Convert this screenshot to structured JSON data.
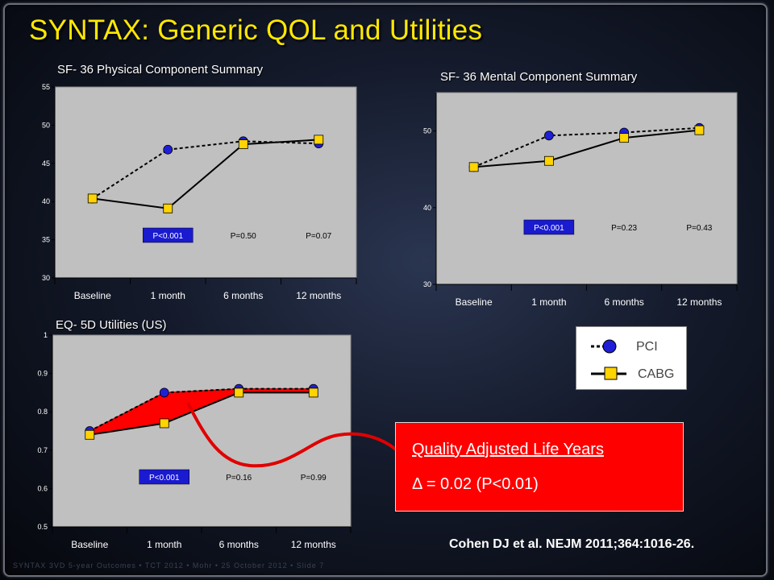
{
  "title": "SYNTAX: Generic QOL and Utilities",
  "colors": {
    "title": "#ffe800",
    "pci_marker": "#1f1fd6",
    "cabg_marker": "#ffd400",
    "plot_bg": "#c0c0c0",
    "pvalue_highlight": "#1a1ad0",
    "qaly_fill": "#ff0000"
  },
  "chart_data": [
    {
      "type": "line",
      "title": "SF- 36 Physical Component Summary",
      "categories": [
        "Baseline",
        "1 month",
        "6 months",
        "12 months"
      ],
      "ylim": [
        30,
        55
      ],
      "yticks": [
        30,
        35,
        40,
        45,
        50,
        55
      ],
      "ytick_labels": [
        "30",
        "35",
        "40",
        "45",
        "50",
        "55"
      ],
      "series": [
        {
          "name": "PCI",
          "style": "dashed",
          "marker": "circle",
          "values": [
            40.4,
            46.8,
            47.9,
            47.6
          ]
        },
        {
          "name": "CABG",
          "style": "solid",
          "marker": "square",
          "values": [
            40.4,
            39.1,
            47.5,
            48.1
          ]
        }
      ],
      "pvalues": [
        {
          "category": "1 month",
          "text": "P<0.001",
          "highlight": true
        },
        {
          "category": "6 months",
          "text": "P=0.50",
          "highlight": false
        },
        {
          "category": "12 months",
          "text": "P=0.07",
          "highlight": false
        }
      ],
      "grid": false
    },
    {
      "type": "line",
      "title": "SF- 36 Mental Component Summary",
      "categories": [
        "Baseline",
        "1 month",
        "6 months",
        "12 months"
      ],
      "ylim": [
        30,
        55
      ],
      "yticks": [
        30,
        40,
        50
      ],
      "ytick_labels": [
        "30",
        "40",
        "50"
      ],
      "series": [
        {
          "name": "PCI",
          "style": "dashed",
          "marker": "circle",
          "values": [
            45.3,
            49.4,
            49.8,
            50.4
          ]
        },
        {
          "name": "CABG",
          "style": "solid",
          "marker": "square",
          "values": [
            45.3,
            46.1,
            49.1,
            50.1
          ]
        }
      ],
      "pvalues": [
        {
          "category": "1 month",
          "text": "P<0.001",
          "highlight": true
        },
        {
          "category": "6 months",
          "text": "P=0.23",
          "highlight": false
        },
        {
          "category": "12 months",
          "text": "P=0.43",
          "highlight": false
        }
      ],
      "grid": false
    },
    {
      "type": "line",
      "title": "EQ- 5D Utilities (US)",
      "categories": [
        "Baseline",
        "1 month",
        "6 months",
        "12 months"
      ],
      "ylim": [
        0.5,
        1.0
      ],
      "yticks": [
        0.5,
        0.6,
        0.7,
        0.8,
        0.9,
        1.0
      ],
      "ytick_labels": [
        "0.5",
        "0.6",
        "0.7",
        "0.8",
        "0.9",
        "1"
      ],
      "series": [
        {
          "name": "PCI",
          "style": "dashed",
          "marker": "circle",
          "values": [
            0.75,
            0.85,
            0.86,
            0.86
          ]
        },
        {
          "name": "CABG",
          "style": "solid",
          "marker": "square",
          "values": [
            0.74,
            0.77,
            0.85,
            0.85
          ]
        }
      ],
      "pvalues": [
        {
          "category": "1 month",
          "text": "P<0.001",
          "highlight": true
        },
        {
          "category": "6 months",
          "text": "P=0.16",
          "highlight": false
        },
        {
          "category": "12 months",
          "text": "P=0.99",
          "highlight": false
        }
      ],
      "shaded_between_series": true,
      "grid": false
    }
  ],
  "legend": {
    "pci": "PCI",
    "cabg": "CABG"
  },
  "qaly": {
    "heading": "Quality Adjusted Life Years",
    "delta_symbol": "Δ",
    "delta_text": " = 0.02 (P<0.01)"
  },
  "citation": "Cohen DJ et al. NEJM 2011;364:1016-26.",
  "footer": "SYNTAX 3VD 5-year Outcomes • TCT 2012 • Mohr • 25 October 2012 • Slide 7"
}
